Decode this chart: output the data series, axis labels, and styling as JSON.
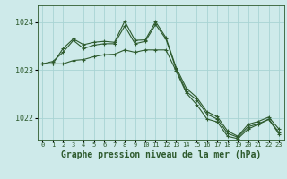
{
  "background_color": "#ceeaea",
  "grid_color": "#a8d4d4",
  "line_color": "#2d5a2d",
  "title": "Graphe pression niveau de la mer (hPa)",
  "ylabel_fontsize": 6,
  "title_fontsize": 7,
  "xtick_fontsize": 5,
  "xlim": [
    -0.5,
    23.5
  ],
  "ylim": [
    1021.55,
    1024.35
  ],
  "yticks": [
    1022,
    1023,
    1024
  ],
  "xticks": [
    0,
    1,
    2,
    3,
    4,
    5,
    6,
    7,
    8,
    9,
    10,
    11,
    12,
    13,
    14,
    15,
    16,
    17,
    18,
    19,
    20,
    21,
    22,
    23
  ],
  "series1_x": [
    0,
    1,
    2,
    3,
    4,
    5,
    6,
    7,
    8,
    9,
    10,
    11,
    12,
    13,
    14,
    15,
    16,
    17,
    18,
    19,
    20,
    21,
    22,
    23
  ],
  "series1_y": [
    1023.13,
    1023.13,
    1023.45,
    1023.65,
    1023.53,
    1023.58,
    1023.6,
    1023.58,
    1024.02,
    1023.62,
    1023.63,
    1024.01,
    1023.68,
    1023.05,
    1022.62,
    1022.43,
    1022.13,
    1022.03,
    1021.73,
    1021.62,
    1021.87,
    1021.93,
    1022.02,
    1021.77
  ],
  "series2_x": [
    0,
    1,
    2,
    3,
    4,
    5,
    6,
    7,
    8,
    9,
    10,
    11,
    12,
    13,
    14,
    15,
    16,
    17,
    18,
    19,
    20,
    21,
    22,
    23
  ],
  "series2_y": [
    1023.13,
    1023.18,
    1023.37,
    1023.62,
    1023.45,
    1023.52,
    1023.55,
    1023.55,
    1023.92,
    1023.55,
    1023.6,
    1023.95,
    1023.65,
    1023.02,
    1022.55,
    1022.38,
    1022.08,
    1021.98,
    1021.68,
    1021.6,
    1021.82,
    1021.88,
    1021.98,
    1021.7
  ],
  "series3_x": [
    0,
    1,
    2,
    3,
    4,
    5,
    6,
    7,
    8,
    9,
    10,
    11,
    12,
    13,
    14,
    15,
    16,
    17,
    18,
    19,
    20,
    21,
    22,
    23
  ],
  "series3_y": [
    1023.13,
    1023.13,
    1023.13,
    1023.2,
    1023.22,
    1023.28,
    1023.32,
    1023.33,
    1023.42,
    1023.37,
    1023.42,
    1023.42,
    1023.42,
    1022.98,
    1022.52,
    1022.28,
    1021.98,
    1021.92,
    1021.62,
    1021.57,
    1021.77,
    1021.87,
    1021.97,
    1021.67
  ]
}
